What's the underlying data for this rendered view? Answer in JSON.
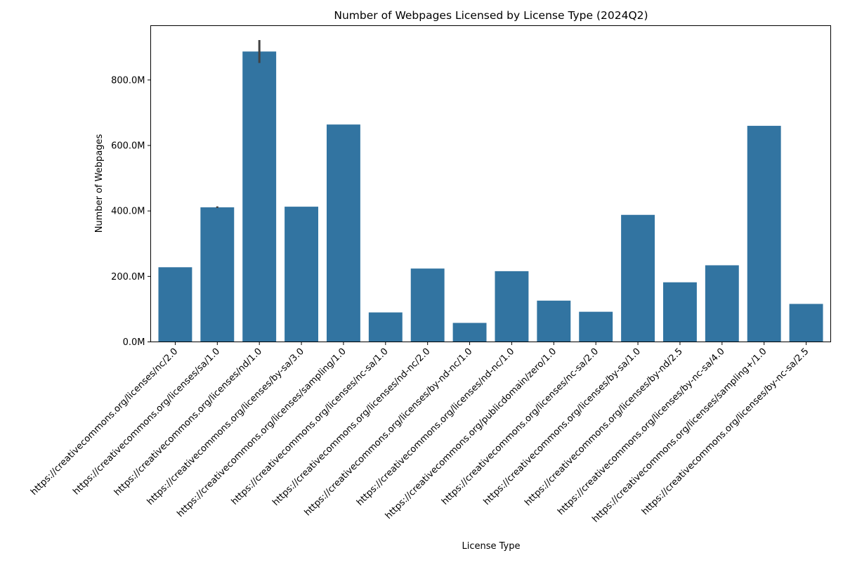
{
  "chart_data": {
    "type": "bar",
    "title": "Number of Webpages Licensed by License Type (2024Q2)",
    "xlabel": "License Type",
    "ylabel": "Number of Webpages",
    "ylim": [
      0,
      966000000
    ],
    "yticks": [
      0,
      200000000,
      400000000,
      600000000,
      800000000
    ],
    "ytick_labels": [
      "0.0M",
      "200.0M",
      "400.0M",
      "600.0M",
      "800.0M"
    ],
    "categories": [
      "https://creativecommons.org/licenses/nc/2.0",
      "https://creativecommons.org/licenses/sa/1.0",
      "https://creativecommons.org/licenses/nd/1.0",
      "https://creativecommons.org/licenses/by-sa/3.0",
      "https://creativecommons.org/licenses/sampling/1.0",
      "https://creativecommons.org/licenses/nc-sa/1.0",
      "https://creativecommons.org/licenses/nd-nc/2.0",
      "https://creativecommons.org/licenses/by-nd-nc/1.0",
      "https://creativecommons.org/licenses/nd-nc/1.0",
      "https://creativecommons.org/publicdomain/zero/1.0",
      "https://creativecommons.org/licenses/nc-sa/2.0",
      "https://creativecommons.org/licenses/by-sa/1.0",
      "https://creativecommons.org/licenses/by-nd/2.5",
      "https://creativecommons.org/licenses/by-nc-sa/4.0",
      "https://creativecommons.org/licenses/sampling+/1.0",
      "https://creativecommons.org/licenses/by-nc-sa/2.5"
    ],
    "values": [
      228000000,
      411000000,
      887000000,
      413000000,
      664000000,
      90000000,
      224000000,
      58000000,
      216000000,
      126000000,
      92000000,
      388000000,
      182000000,
      234000000,
      660000000,
      116000000
    ],
    "error_bars": [
      null,
      [
        409000000,
        414000000
      ],
      [
        852000000,
        922000000
      ],
      null,
      null,
      null,
      null,
      null,
      null,
      null,
      null,
      null,
      null,
      null,
      null,
      null
    ],
    "bar_color": "#3274a1",
    "error_color": "#424242",
    "grid": false,
    "legend": "none"
  }
}
